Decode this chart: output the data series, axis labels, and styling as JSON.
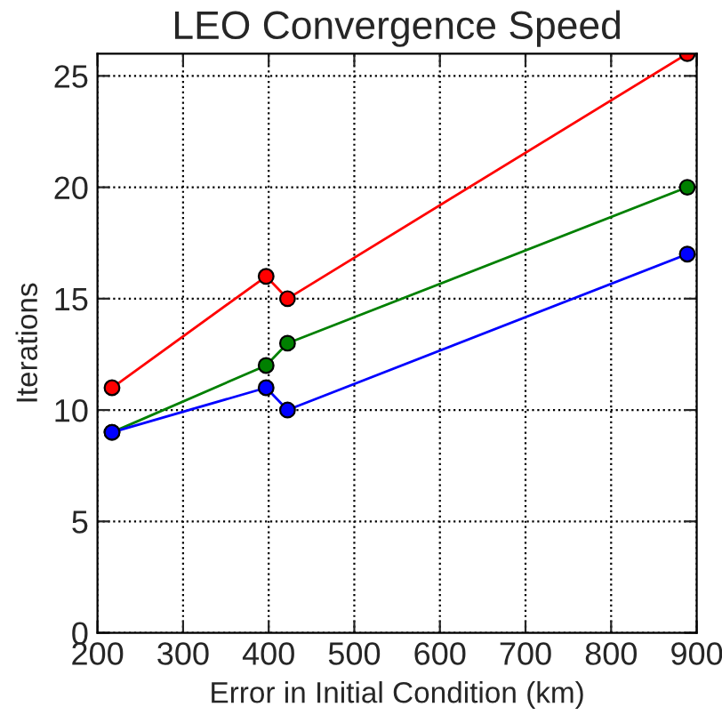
{
  "chart_data": {
    "type": "line",
    "title": "LEO Convergence Speed",
    "xlabel": "Error in Initial Condition (km)",
    "ylabel": "Iterations",
    "x": [
      217,
      397,
      422,
      889
    ],
    "series": [
      {
        "color": "#ff0000",
        "values": [
          11,
          16,
          15,
          26
        ]
      },
      {
        "color": "#008000",
        "values": [
          9,
          12,
          13,
          20
        ]
      },
      {
        "color": "#0000ff",
        "values": [
          9,
          11,
          10,
          17
        ]
      }
    ],
    "xlim": [
      200,
      900
    ],
    "xticks": [
      200,
      300,
      400,
      500,
      600,
      700,
      800,
      900
    ],
    "ylim": [
      0,
      26
    ],
    "yticks": [
      0,
      5,
      10,
      15,
      20,
      25
    ],
    "grid": true,
    "marker": "circle",
    "line_style": "solid",
    "legend": false
  }
}
